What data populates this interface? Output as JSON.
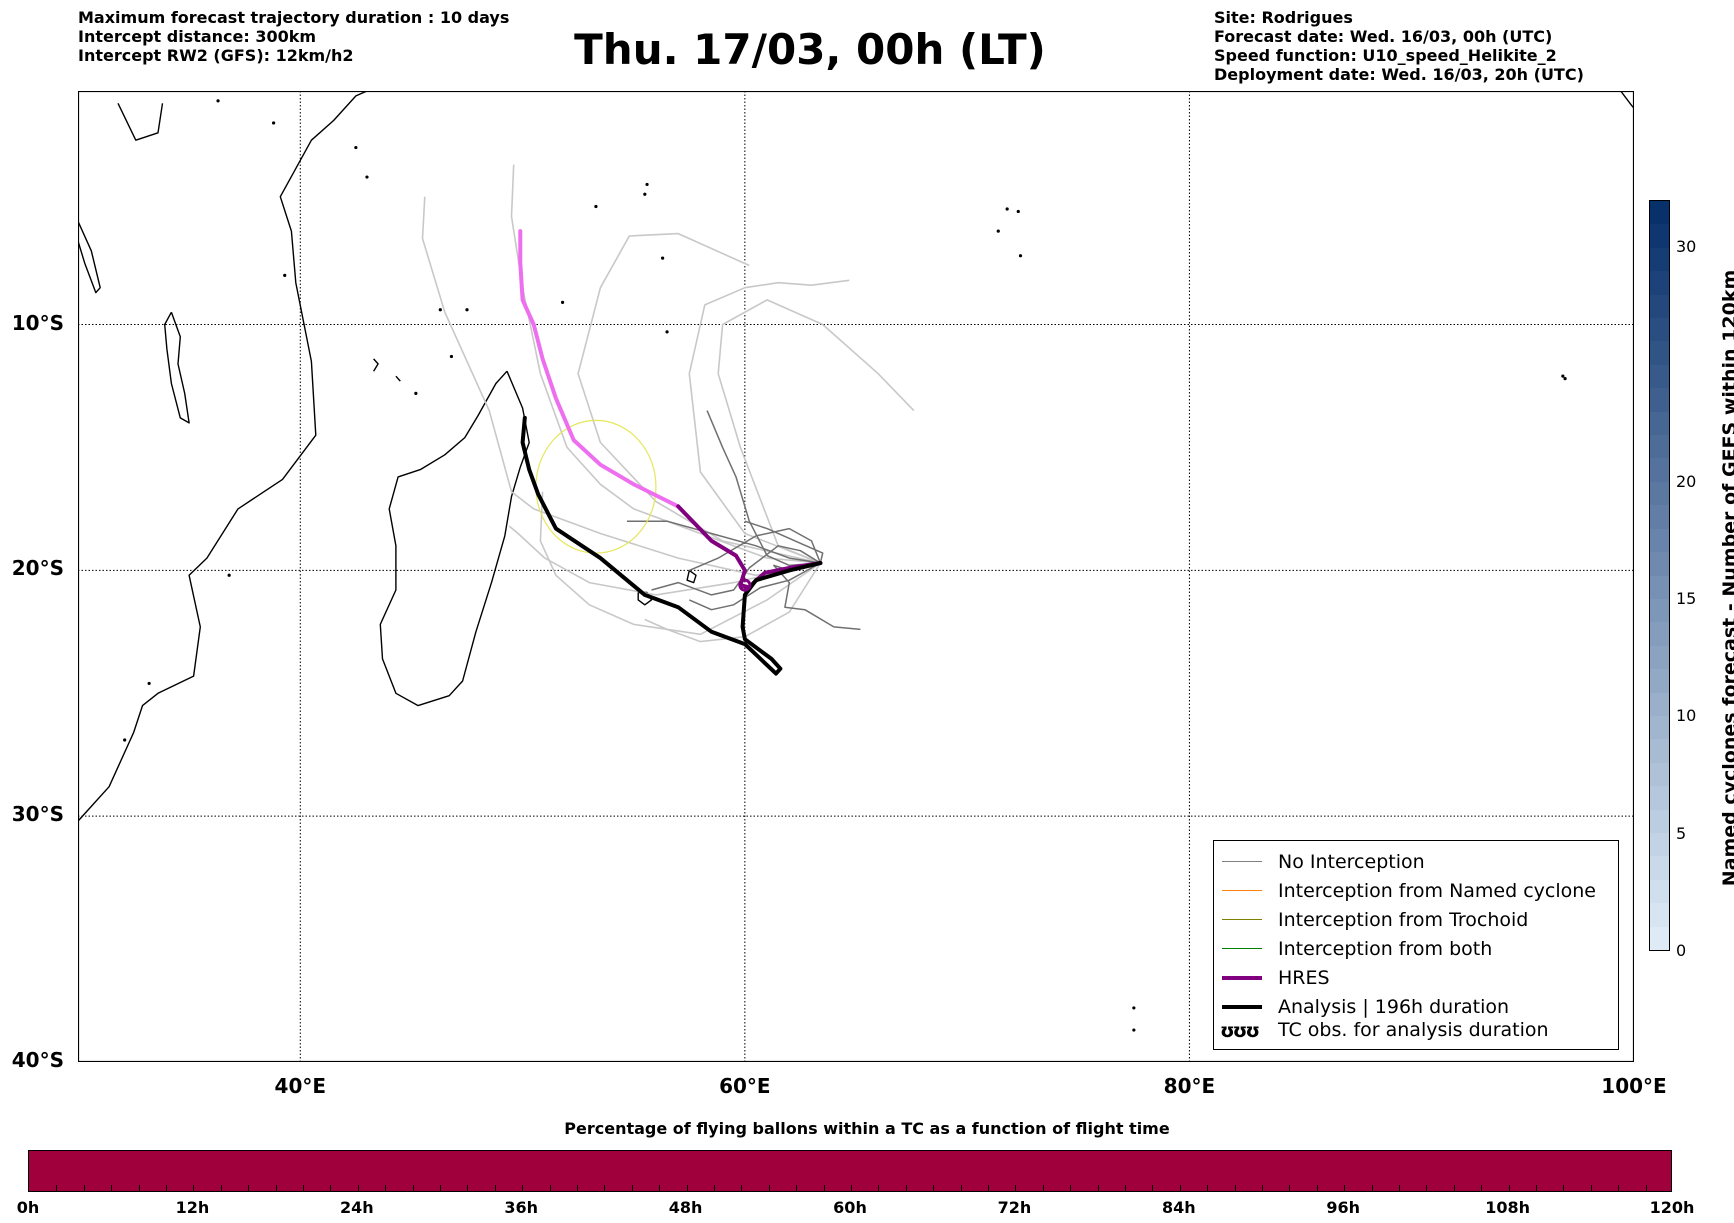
{
  "info_left": {
    "line1": "Maximum forecast trajectory duration : 10 days",
    "line2": "Intercept distance: 300km",
    "line3": "Intercept RW2 (GFS):  12km/h2"
  },
  "title": "Thu. 17/03, 00h (LT)",
  "info_right": {
    "line1": "Site: Rodrigues",
    "line2": "Forecast date: Wed. 16/03, 00h (UTC)",
    "line3": "Speed function: U10_speed_Helikite_2",
    "line4": "Deployment date: Wed. 16/03, 20h (UTC)"
  },
  "map": {
    "lon_range": [
      30,
      100
    ],
    "lat_range": [
      -40,
      -0.5
    ],
    "lat_gridlines": [
      -10,
      -20,
      -30
    ],
    "lon_gridlines": [
      40,
      60,
      80
    ],
    "lat_labels": [
      {
        "lat": -10,
        "text": "10°S"
      },
      {
        "lat": -20,
        "text": "20°S"
      },
      {
        "lat": -30,
        "text": "30°S"
      },
      {
        "lat": -40,
        "text": "40°S"
      }
    ],
    "lon_labels": [
      {
        "lon": 40,
        "text": "40°E"
      },
      {
        "lon": 60,
        "text": "60°E"
      },
      {
        "lon": 80,
        "text": "80°E"
      },
      {
        "lon": 100,
        "text": "100°E"
      }
    ],
    "coastlines": [
      {
        "name": "africa-east-coast",
        "points": [
          [
            30,
            -30.2
          ],
          [
            31.4,
            -28.8
          ],
          [
            32.5,
            -26.6
          ],
          [
            32.9,
            -25.5
          ],
          [
            33.6,
            -25.0
          ],
          [
            35.2,
            -24.3
          ],
          [
            35.5,
            -22.3
          ],
          [
            35.0,
            -20.2
          ],
          [
            35.8,
            -19.5
          ],
          [
            37.2,
            -17.5
          ],
          [
            39.2,
            -16.3
          ],
          [
            40.7,
            -14.5
          ],
          [
            40.5,
            -11.5
          ],
          [
            39.8,
            -8.3
          ],
          [
            39.6,
            -6.2
          ],
          [
            39.1,
            -4.8
          ],
          [
            40.5,
            -2.5
          ],
          [
            41.5,
            -1.7
          ],
          [
            42.5,
            -0.7
          ],
          [
            43.0,
            -0.5
          ]
        ]
      },
      {
        "name": "lake-malawi",
        "points": [
          [
            34.2,
            -9.5
          ],
          [
            34.6,
            -10.5
          ],
          [
            34.5,
            -11.6
          ],
          [
            34.8,
            -12.8
          ],
          [
            35.0,
            -14.0
          ],
          [
            34.6,
            -13.8
          ],
          [
            34.2,
            -12.4
          ],
          [
            34.0,
            -11.0
          ],
          [
            33.9,
            -10.0
          ],
          [
            34.2,
            -9.5
          ]
        ]
      },
      {
        "name": "lake-tanganyika",
        "points": [
          [
            30.0,
            -5.8
          ],
          [
            30.6,
            -7.0
          ],
          [
            31.0,
            -8.5
          ],
          [
            30.8,
            -8.7
          ],
          [
            30.3,
            -7.5
          ],
          [
            30.0,
            -6.6
          ]
        ]
      },
      {
        "name": "lake-victoria-shore",
        "points": [
          [
            31.8,
            -1.0
          ],
          [
            32.6,
            -2.5
          ],
          [
            33.6,
            -2.2
          ],
          [
            33.8,
            -1.0
          ]
        ]
      },
      {
        "name": "madagascar",
        "points": [
          [
            49.3,
            -11.9
          ],
          [
            50.0,
            -13.4
          ],
          [
            50.3,
            -14.8
          ],
          [
            49.9,
            -15.8
          ],
          [
            49.5,
            -17.0
          ],
          [
            49.2,
            -18.6
          ],
          [
            48.6,
            -20.5
          ],
          [
            47.9,
            -22.5
          ],
          [
            47.3,
            -24.5
          ],
          [
            46.7,
            -25.1
          ],
          [
            45.3,
            -25.5
          ],
          [
            44.3,
            -25.0
          ],
          [
            43.7,
            -23.6
          ],
          [
            43.6,
            -22.2
          ],
          [
            44.3,
            -20.8
          ],
          [
            44.3,
            -19.0
          ],
          [
            44.0,
            -17.5
          ],
          [
            44.4,
            -16.2
          ],
          [
            45.4,
            -15.9
          ],
          [
            46.5,
            -15.3
          ],
          [
            47.4,
            -14.6
          ],
          [
            48.0,
            -13.7
          ],
          [
            48.8,
            -12.4
          ],
          [
            49.3,
            -11.9
          ]
        ]
      },
      {
        "name": "reunion",
        "points": [
          [
            55.2,
            -20.9
          ],
          [
            55.6,
            -20.9
          ],
          [
            55.8,
            -21.2
          ],
          [
            55.5,
            -21.4
          ],
          [
            55.2,
            -21.2
          ],
          [
            55.2,
            -20.9
          ]
        ]
      },
      {
        "name": "mauritius",
        "points": [
          [
            57.5,
            -20.0
          ],
          [
            57.8,
            -20.2
          ],
          [
            57.7,
            -20.5
          ],
          [
            57.4,
            -20.4
          ],
          [
            57.5,
            -20.0
          ]
        ]
      },
      {
        "name": "comoros-1",
        "points": [
          [
            43.3,
            -11.4
          ],
          [
            43.5,
            -11.6
          ],
          [
            43.3,
            -11.9
          ]
        ]
      },
      {
        "name": "comoros-2",
        "points": [
          [
            44.3,
            -12.1
          ],
          [
            44.5,
            -12.3
          ]
        ]
      },
      {
        "name": "west-australia",
        "points": [
          [
            99.4,
            -0.5
          ],
          [
            99.9,
            -1.1
          ],
          [
            100,
            -1.2
          ]
        ]
      }
    ],
    "islands": [
      [
        55.5,
        -4.7
      ],
      [
        55.6,
        -4.3
      ],
      [
        53.3,
        -5.2
      ],
      [
        56.3,
        -7.3
      ],
      [
        46.3,
        -9.4
      ],
      [
        47.5,
        -9.4
      ],
      [
        51.8,
        -9.1
      ],
      [
        46.8,
        -11.3
      ],
      [
        45.2,
        -12.8
      ],
      [
        56.5,
        -10.3
      ],
      [
        71.8,
        -5.3
      ],
      [
        72.3,
        -5.4
      ],
      [
        71.4,
        -6.2
      ],
      [
        72.4,
        -7.2
      ],
      [
        63.4,
        -19.7
      ],
      [
        77.5,
        -37.8
      ],
      [
        77.5,
        -38.7
      ],
      [
        96.8,
        -12.1
      ],
      [
        96.9,
        -12.2
      ],
      [
        43.0,
        -4.0
      ],
      [
        42.5,
        -2.8
      ],
      [
        39.3,
        -8.0
      ],
      [
        33.2,
        -24.6
      ],
      [
        32.1,
        -26.9
      ],
      [
        36.8,
        -20.2
      ],
      [
        38.8,
        -1.8
      ],
      [
        36.3,
        -0.9
      ]
    ],
    "gefs_light_tracks": [
      [
        [
          63.4,
          -19.7
        ],
        [
          61.0,
          -19.5
        ],
        [
          58.0,
          -18.5
        ],
        [
          55.0,
          -17.5
        ],
        [
          53.5,
          -16.5
        ],
        [
          52.0,
          -15.0
        ],
        [
          50.8,
          -12.0
        ],
        [
          50.0,
          -8.5
        ],
        [
          49.5,
          -5.6
        ],
        [
          49.6,
          -3.5
        ]
      ],
      [
        [
          63.4,
          -19.7
        ],
        [
          60.5,
          -20.2
        ],
        [
          57.0,
          -19.5
        ],
        [
          53.5,
          -18.5
        ],
        [
          50.5,
          -17.5
        ],
        [
          49.5,
          -16.8
        ],
        [
          48.5,
          -13.5
        ],
        [
          46.5,
          -9.5
        ],
        [
          45.5,
          -6.5
        ],
        [
          45.6,
          -4.8
        ]
      ],
      [
        [
          63.4,
          -19.7
        ],
        [
          59.0,
          -18.8
        ],
        [
          56.0,
          -17.2
        ],
        [
          53.5,
          -14.8
        ],
        [
          52.5,
          -12.0
        ],
        [
          53.5,
          -8.5
        ],
        [
          54.8,
          -6.4
        ],
        [
          57.0,
          -6.3
        ],
        [
          60.2,
          -7.6
        ]
      ],
      [
        [
          63.4,
          -19.7
        ],
        [
          60.0,
          -18.5
        ],
        [
          58.0,
          -16.0
        ],
        [
          57.5,
          -12.0
        ],
        [
          58.2,
          -9.2
        ],
        [
          60.0,
          -8.5
        ],
        [
          61.5,
          -8.3
        ],
        [
          63.0,
          -8.4
        ],
        [
          64.7,
          -8.2
        ]
      ],
      [
        [
          63.4,
          -19.7
        ],
        [
          61.5,
          -19.0
        ],
        [
          59.8,
          -15.0
        ],
        [
          58.8,
          -12.0
        ],
        [
          59.0,
          -10.0
        ],
        [
          61.0,
          -9.0
        ],
        [
          63.5,
          -10.0
        ],
        [
          66.0,
          -12.0
        ],
        [
          67.6,
          -13.5
        ]
      ],
      [
        [
          63.4,
          -19.7
        ],
        [
          59.5,
          -20.5
        ],
        [
          56.0,
          -21.0
        ],
        [
          53.0,
          -20.5
        ],
        [
          51.0,
          -19.5
        ],
        [
          49.8,
          -18.5
        ],
        [
          49.4,
          -18.2
        ]
      ],
      [
        [
          63.4,
          -19.7
        ],
        [
          61.0,
          -21.2
        ],
        [
          58.0,
          -22.6
        ],
        [
          55.0,
          -22.2
        ],
        [
          53.0,
          -21.4
        ],
        [
          51.5,
          -20.2
        ],
        [
          50.8,
          -18.8
        ],
        [
          50.9,
          -16.8
        ]
      ],
      [
        [
          63.4,
          -19.7
        ],
        [
          62.0,
          -21.7
        ],
        [
          60.0,
          -22.7
        ],
        [
          58.0,
          -22.9
        ],
        [
          56.5,
          -22.4
        ],
        [
          55.5,
          -22.0
        ]
      ]
    ],
    "gefs_dark_tracks": [
      [
        [
          63.4,
          -19.7
        ],
        [
          62.0,
          -19.8
        ],
        [
          61.0,
          -19.4
        ],
        [
          60.2,
          -18.0
        ],
        [
          59.6,
          -16.2
        ],
        [
          59.0,
          -15.0
        ],
        [
          58.3,
          -13.5
        ]
      ],
      [
        [
          63.4,
          -19.7
        ],
        [
          62.0,
          -19.5
        ],
        [
          60.5,
          -19.0
        ],
        [
          58.5,
          -18.5
        ],
        [
          56.5,
          -18.0
        ],
        [
          54.7,
          -18.0
        ]
      ],
      [
        [
          63.4,
          -19.7
        ],
        [
          62.0,
          -20.0
        ],
        [
          61.3,
          -19.8
        ],
        [
          62.0,
          -20.5
        ],
        [
          61.8,
          -21.5
        ],
        [
          62.7,
          -21.6
        ],
        [
          64.0,
          -22.3
        ],
        [
          65.2,
          -22.4
        ]
      ],
      [
        [
          63.4,
          -19.7
        ],
        [
          62.5,
          -19.2
        ],
        [
          61.5,
          -19.0
        ],
        [
          60.2,
          -19.9
        ],
        [
          59.5,
          -20.8
        ],
        [
          58.5,
          -21.0
        ],
        [
          57.0,
          -20.5
        ],
        [
          55.8,
          -20.8
        ]
      ],
      [
        [
          63.4,
          -19.7
        ],
        [
          63.0,
          -18.8
        ],
        [
          62.0,
          -18.3
        ],
        [
          60.5,
          -18.6
        ],
        [
          58.8,
          -19.5
        ],
        [
          57.5,
          -20.0
        ]
      ],
      [
        [
          63.4,
          -19.7
        ],
        [
          62.0,
          -20.4
        ],
        [
          60.7,
          -20.7
        ],
        [
          59.5,
          -21.4
        ],
        [
          58.5,
          -21.6
        ],
        [
          57.5,
          -21.2
        ]
      ],
      [
        [
          63.4,
          -19.7
        ],
        [
          63.5,
          -19.3
        ],
        [
          62.5,
          -18.9
        ],
        [
          61.0,
          -18.3
        ],
        [
          60.0,
          -18.0
        ]
      ]
    ],
    "tc_circle": {
      "lon": 53.3,
      "lat": -16.6,
      "radius_deg": 2.7
    },
    "hres_track": [
      [
        63.4,
        -19.7
      ],
      [
        62.0,
        -19.9
      ],
      [
        60.9,
        -20.1
      ],
      [
        60.4,
        -20.5
      ],
      [
        60.2,
        -20.7
      ],
      [
        59.8,
        -20.6
      ],
      [
        60.0,
        -20.0
      ],
      [
        59.6,
        -19.4
      ],
      [
        58.5,
        -18.8
      ],
      [
        57.0,
        -17.4
      ],
      [
        55.0,
        -16.5
      ],
      [
        53.5,
        -15.7
      ],
      [
        52.3,
        -14.7
      ],
      [
        51.5,
        -13.0
      ],
      [
        50.9,
        -11.4
      ],
      [
        50.5,
        -10.0
      ],
      [
        50.0,
        -9.0
      ],
      [
        49.9,
        -7.5
      ],
      [
        49.9,
        -6.2
      ]
    ],
    "hres_dark_until_index": 9,
    "analysis_track": [
      [
        63.4,
        -19.7
      ],
      [
        62.0,
        -20.0
      ],
      [
        60.5,
        -20.4
      ],
      [
        60.0,
        -21.0
      ],
      [
        59.9,
        -22.3
      ],
      [
        60.0,
        -22.8
      ],
      [
        61.2,
        -23.6
      ],
      [
        61.6,
        -24.0
      ],
      [
        61.4,
        -24.2
      ],
      [
        60.0,
        -23.0
      ],
      [
        58.5,
        -22.5
      ],
      [
        57.0,
        -21.5
      ],
      [
        55.5,
        -21.0
      ],
      [
        53.5,
        -19.5
      ],
      [
        51.5,
        -18.3
      ],
      [
        50.7,
        -16.9
      ],
      [
        50.3,
        -15.9
      ],
      [
        50.0,
        -14.8
      ],
      [
        50.1,
        -13.8
      ]
    ],
    "analysis_loop": {
      "lon": 60.0,
      "lat": -20.6
    }
  },
  "legend": {
    "items": [
      {
        "label": "No Interception",
        "color": "#808080",
        "width": 1.5,
        "key": "no_interception"
      },
      {
        "label": "Interception from Named cyclone",
        "color": "#ff7f0e",
        "width": 1.5,
        "key": "named"
      },
      {
        "label": "Interception from Trochoid",
        "color": "#808000",
        "width": 1.5,
        "key": "trochoid"
      },
      {
        "label": "Interception from both",
        "color": "#008000",
        "width": 1.5,
        "key": "both"
      },
      {
        "label": "HRES",
        "color": "#800080",
        "width": 4,
        "key": "hres"
      },
      {
        "label": "Analysis | 196h duration",
        "color": "#000000",
        "width": 4,
        "key": "analysis"
      }
    ],
    "tc_obs_label": "TC obs. for analysis duration",
    "tc_obs_glyph": "ʊʊʊ"
  },
  "colorbar": {
    "title": "Named cyclones forecast - Number of GEFS within 120km",
    "vmin": 0,
    "vmax": 32,
    "ticks": [
      0,
      5,
      10,
      15,
      20,
      30
    ],
    "color_low": "#deebf7",
    "color_high": "#08306b"
  },
  "bottom_bar": {
    "title": "Percentage of flying ballons within a TC as a function of flight time",
    "fill_color": "#a0003b",
    "fill_fraction": 1.0,
    "time_labels": [
      "0h",
      "12h",
      "24h",
      "36h",
      "48h",
      "60h",
      "72h",
      "84h",
      "96h",
      "108h",
      "120h"
    ],
    "minor_ticks": 60
  }
}
